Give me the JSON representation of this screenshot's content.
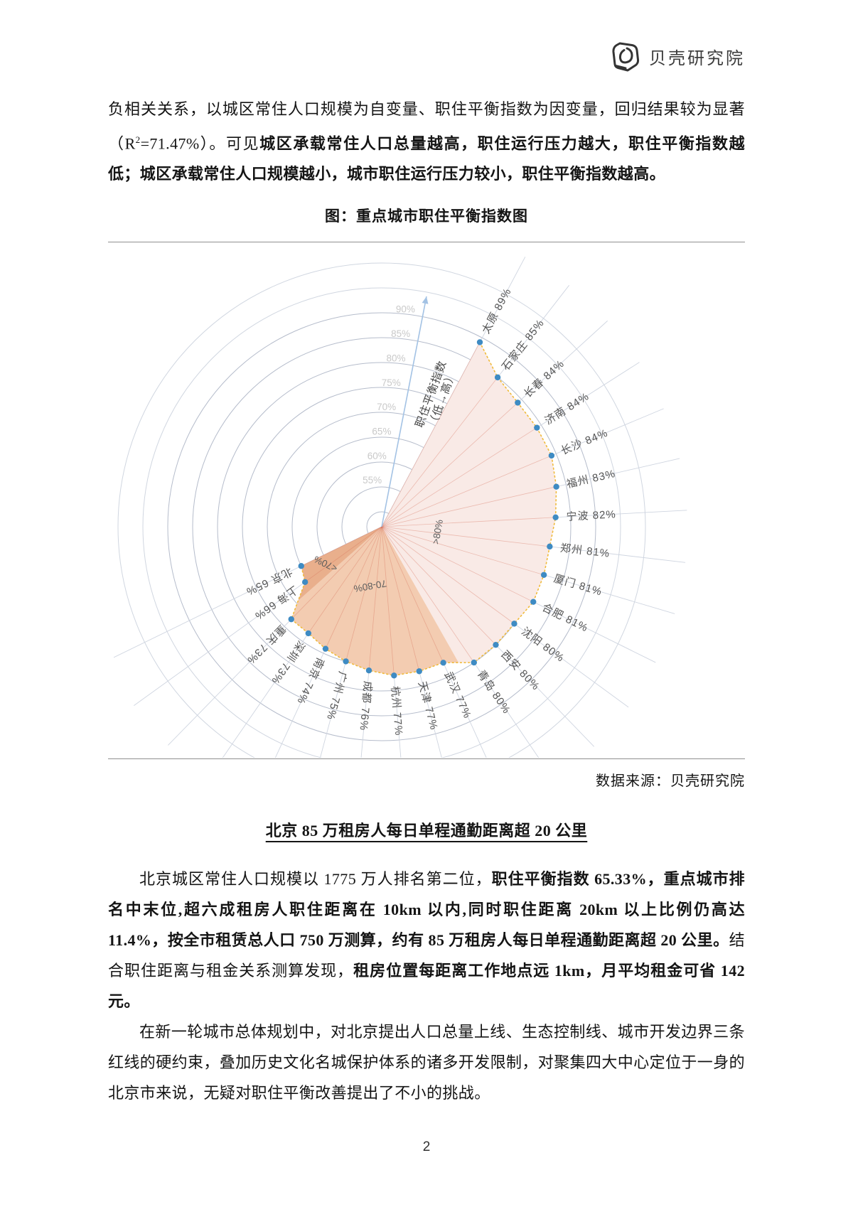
{
  "header": {
    "logo_text": "贝壳研究院"
  },
  "intro": {
    "run1": "负相关关系，以城区常住人口规模为自变量、职住平衡指数为因变量，回归结果较为显著（R",
    "sup": "2",
    "run2": "=71.47%）。可见",
    "run3_bold": "城区承载常住人口总量越高，职住运行压力越大，职住平衡指数越低；城区承载常住人口规模越小，城市职住运行压力较小，职住平衡指数越高。"
  },
  "figure": {
    "title": "图：重点城市职住平衡指数图",
    "source": "数据来源：贝壳研究院"
  },
  "chart_data": {
    "type": "polar-rose",
    "title": "图：重点城市职住平衡指数图",
    "series_name": "职住平衡指数",
    "unit": "%",
    "radial_axis": {
      "label_line1": "职住平衡指数",
      "label_line2": "（低→高）",
      "center_value": 47,
      "ring_values": [
        50,
        55,
        60,
        65,
        70,
        75,
        80,
        85,
        90,
        95,
        100
      ],
      "labeled_rings": [
        "55%",
        "60%",
        "65%",
        "70%",
        "75%",
        "80%",
        "85%",
        "90%"
      ],
      "axis_angle_deg": 11
    },
    "angles": {
      "start_deg": 28,
      "step_deg": 9.818
    },
    "bands": [
      {
        "label": ">80%",
        "min": 80,
        "color": "#f9eae6"
      },
      {
        "label": "70-80%",
        "min": 70,
        "color": "#f3ccb1"
      },
      {
        "label": "<70%",
        "min": 0,
        "color": "#e9af8c"
      }
    ],
    "cities": [
      {
        "name": "太原",
        "value": 89
      },
      {
        "name": "石家庄",
        "value": 85
      },
      {
        "name": "长春",
        "value": 84
      },
      {
        "name": "济南",
        "value": 84
      },
      {
        "name": "长沙",
        "value": 84
      },
      {
        "name": "福州",
        "value": 83
      },
      {
        "name": "宁波",
        "value": 82
      },
      {
        "name": "郑州",
        "value": 81
      },
      {
        "name": "厦门",
        "value": 81
      },
      {
        "name": "合肥",
        "value": 81
      },
      {
        "name": "沈阳",
        "value": 80
      },
      {
        "name": "西安",
        "value": 80
      },
      {
        "name": "青岛",
        "value": 80
      },
      {
        "name": "武汉",
        "value": 77
      },
      {
        "name": "天津",
        "value": 77
      },
      {
        "name": "杭州",
        "value": 77
      },
      {
        "name": "成都",
        "value": 76
      },
      {
        "name": "广州",
        "value": 75
      },
      {
        "name": "南京",
        "value": 74
      },
      {
        "name": "深圳",
        "value": 73
      },
      {
        "name": "重庆",
        "value": 73
      },
      {
        "name": "上海",
        "value": 66
      },
      {
        "name": "北京",
        "value": 65
      }
    ],
    "colors": {
      "grid_ring": "#b5bccb",
      "grid_ring_outer": "#d0d6e0",
      "spoke": "#cfd5e0",
      "inner_spoke": "rgba(212,108,88,0.38)",
      "outline": "#f0ba3a",
      "point": "#3e8bc3",
      "axis": "#a3c2e4",
      "ring_label": "#c9c9c9",
      "city_label": "#545454",
      "band_label": "#5c5c5c",
      "axis_label": "#464646"
    }
  },
  "section": {
    "heading": "北京 85 万租房人每日单程通勤距离超 20 公里",
    "p1_run1": "北京城区常住人口规模以 1775 万人排名第二位，",
    "p1_bold1": "职住平衡指数 65.33%，重点城市排名中末位,超六成租房人职住距离在 10km 以内,同时职住距离 20km 以上比例仍高达 11.4%，按全市租赁总人口 750 万测算，约有 85 万租房人每日单程通勤距离超 20 公里。",
    "p1_run2": "结合职住距离与租金关系测算发现，",
    "p1_bold2": "租房位置每距离工作地点远 1km，月平均租金可省 142 元。",
    "p2": "在新一轮城市总体规划中，对北京提出人口总量上线、生态控制线、城市开发边界三条红线的硬约束，叠加历史文化名城保护体系的诸多开发限制，对聚集四大中心定位于一身的北京市来说，无疑对职住平衡改善提出了不小的挑战。"
  },
  "footer": {
    "page_number": "2"
  }
}
